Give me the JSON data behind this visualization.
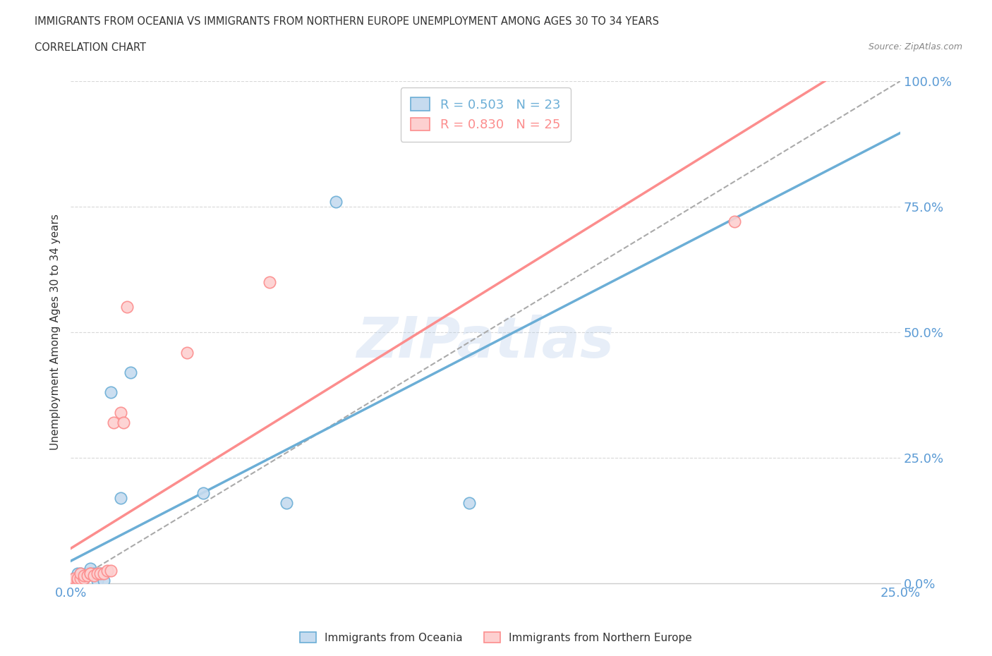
{
  "title_line1": "IMMIGRANTS FROM OCEANIA VS IMMIGRANTS FROM NORTHERN EUROPE UNEMPLOYMENT AMONG AGES 30 TO 34 YEARS",
  "title_line2": "CORRELATION CHART",
  "source_text": "Source: ZipAtlas.com",
  "ylabel": "Unemployment Among Ages 30 to 34 years",
  "xlim": [
    0.0,
    0.25
  ],
  "ylim": [
    0.0,
    1.0
  ],
  "xticks": [
    0.0,
    0.05,
    0.1,
    0.15,
    0.2,
    0.25
  ],
  "yticks": [
    0.0,
    0.25,
    0.5,
    0.75,
    1.0
  ],
  "xtick_labels": [
    "0.0%",
    "",
    "",
    "",
    "",
    "25.0%"
  ],
  "ytick_labels": [
    "0.0%",
    "25.0%",
    "50.0%",
    "75.0%",
    "100.0%"
  ],
  "oceania_x": [
    0.0,
    0.001,
    0.001,
    0.002,
    0.002,
    0.003,
    0.003,
    0.004,
    0.004,
    0.005,
    0.005,
    0.006,
    0.007,
    0.008,
    0.009,
    0.01,
    0.012,
    0.015,
    0.018,
    0.04,
    0.065,
    0.08,
    0.12
  ],
  "oceania_y": [
    0.005,
    0.005,
    0.01,
    0.01,
    0.02,
    0.01,
    0.02,
    0.01,
    0.015,
    0.02,
    0.02,
    0.03,
    0.02,
    0.005,
    0.02,
    0.005,
    0.38,
    0.17,
    0.42,
    0.18,
    0.16,
    0.76,
    0.16
  ],
  "northern_europe_x": [
    0.0,
    0.001,
    0.001,
    0.002,
    0.002,
    0.003,
    0.003,
    0.004,
    0.004,
    0.005,
    0.006,
    0.006,
    0.007,
    0.008,
    0.009,
    0.01,
    0.011,
    0.012,
    0.013,
    0.015,
    0.016,
    0.017,
    0.035,
    0.06,
    0.2
  ],
  "northern_europe_y": [
    0.005,
    0.005,
    0.01,
    0.005,
    0.01,
    0.01,
    0.02,
    0.01,
    0.015,
    0.015,
    0.02,
    0.02,
    0.015,
    0.02,
    0.02,
    0.02,
    0.025,
    0.025,
    0.32,
    0.34,
    0.32,
    0.55,
    0.46,
    0.6,
    0.72
  ],
  "oceania_color": "#6baed6",
  "oceania_color_light": "#c6dbef",
  "northern_europe_color": "#fc8d8d",
  "northern_europe_color_light": "#fdd0d0",
  "oceania_R": 0.503,
  "oceania_N": 23,
  "northern_europe_R": 0.83,
  "northern_europe_N": 25,
  "legend_label_oceania": "Immigrants from Oceania",
  "legend_label_northern": "Immigrants from Northern Europe",
  "watermark": "ZIPatlas",
  "background_color": "#ffffff",
  "grid_color": "#d8d8d8",
  "title_color": "#333333",
  "tick_label_color": "#5b9bd5"
}
